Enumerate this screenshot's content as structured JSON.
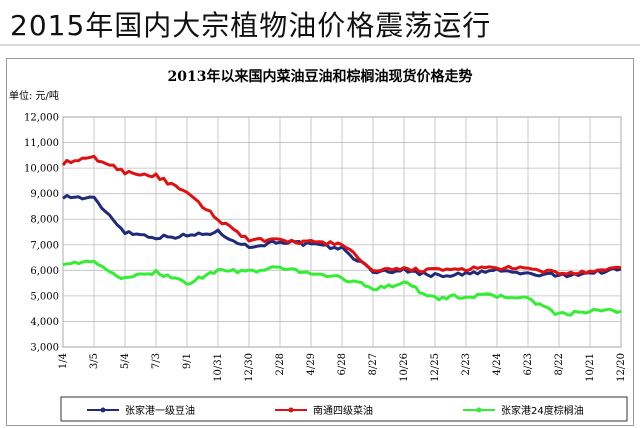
{
  "banner": {
    "title": "2015年国内大宗植物油价格震荡运行"
  },
  "chart_data": {
    "type": "line",
    "title": "2013年以来国内菜油豆油和棕榈油现货价格走势",
    "ylabel": "单位: 元/吨",
    "xlabel": "",
    "ylim": [
      3000,
      12000
    ],
    "yticks": [
      "3,000",
      "4,000",
      "5,000",
      "6,000",
      "7,000",
      "8,000",
      "9,000",
      "10,000",
      "11,000",
      "12,000"
    ],
    "x": [
      "1/4",
      "3/5",
      "5/4",
      "7/3",
      "9/1",
      "10/31",
      "12/30",
      "2/28",
      "4/29",
      "6/28",
      "8/27",
      "10/26",
      "12/25",
      "2/23",
      "4/24",
      "6/23",
      "8/22",
      "10/21",
      "12/20"
    ],
    "grid": true,
    "legend": "bottom",
    "series": [
      {
        "name": "张家港一级豆油",
        "color": "#1f2a7a",
        "values": [
          8900,
          8800,
          7500,
          7300,
          7350,
          7500,
          6900,
          7150,
          7000,
          6850,
          5950,
          6000,
          5800,
          5850,
          6000,
          5850,
          5800,
          5900,
          6050
        ]
      },
      {
        "name": "南通四级菜油",
        "color": "#e01010",
        "values": [
          10200,
          10400,
          9850,
          9700,
          9000,
          8000,
          7200,
          7150,
          7100,
          7050,
          5950,
          6050,
          6000,
          6050,
          6100,
          6050,
          5900,
          5900,
          6100
        ]
      },
      {
        "name": "张家港24度棕榈油",
        "color": "#33ee33",
        "values": [
          6300,
          6300,
          5650,
          5950,
          5500,
          6000,
          5950,
          6100,
          5900,
          5700,
          5300,
          5500,
          4900,
          5000,
          5000,
          4900,
          4250,
          4400,
          4400
        ]
      }
    ]
  }
}
